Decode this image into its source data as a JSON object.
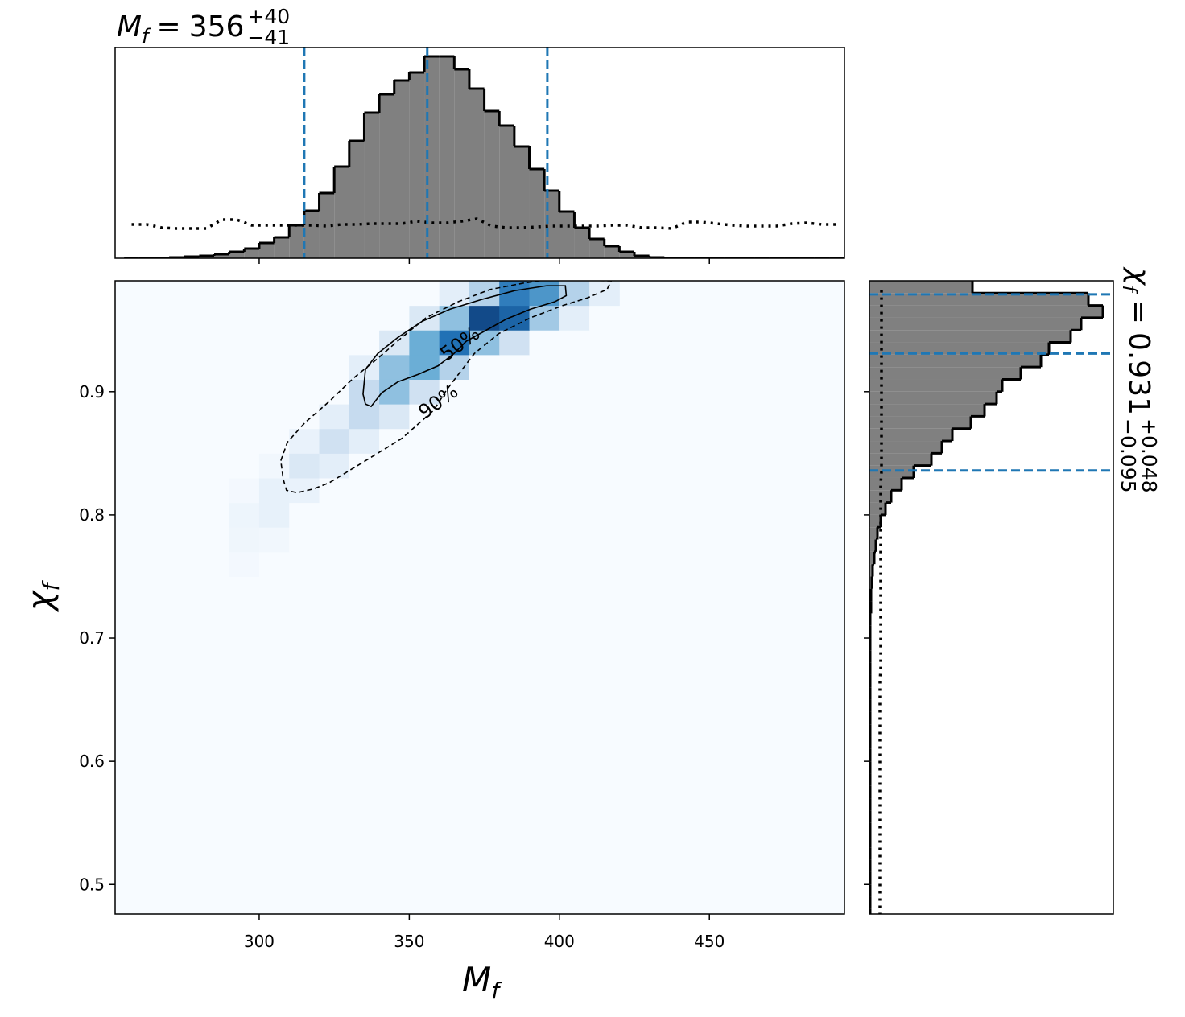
{
  "chart_data": [
    {
      "type": "histogram",
      "title": {
        "symbol": "M",
        "subscript": "f",
        "relation": "=",
        "value": "356",
        "sup": "+40",
        "sub": "−41"
      },
      "bins": [
        255,
        260,
        265,
        270,
        275,
        280,
        285,
        290,
        295,
        300,
        305,
        310,
        315,
        320,
        325,
        330,
        335,
        340,
        345,
        350,
        355,
        360,
        365,
        370,
        375,
        380,
        385,
        390,
        395,
        400,
        405,
        410,
        415,
        420,
        425,
        430,
        435,
        440,
        445,
        450,
        455,
        460,
        465,
        470,
        475,
        480,
        485,
        490,
        495
      ],
      "counts": [
        0,
        0,
        0,
        1,
        2,
        3,
        5,
        8,
        12,
        19,
        26,
        41,
        59,
        81,
        114,
        146,
        181,
        204,
        221,
        231,
        251,
        251,
        235,
        211,
        183,
        165,
        139,
        111,
        84,
        58,
        38,
        24,
        15,
        8,
        3,
        1,
        0,
        0,
        0,
        0,
        0,
        0,
        0,
        0,
        0,
        0,
        0,
        0
      ],
      "prior": [
        42,
        42,
        38,
        37,
        37,
        37,
        48,
        48,
        41,
        41,
        41,
        41,
        41,
        40,
        42,
        42,
        43,
        43,
        43,
        46,
        44,
        44,
        46,
        49,
        40,
        38,
        38,
        39,
        40,
        40,
        40,
        40,
        41,
        41,
        38,
        38,
        37,
        45,
        45,
        43,
        41,
        40,
        40,
        40,
        43,
        44,
        42,
        42
      ],
      "color": "#808080",
      "quantile_color": "#1f77b4",
      "quantiles": [
        315,
        356,
        396
      ],
      "xlim": [
        252,
        495
      ],
      "ylim": [
        0,
        262
      ],
      "xticks": [
        300,
        350,
        400,
        450
      ]
    },
    {
      "type": "heatmap",
      "xlabel": {
        "symbol": "M",
        "subscript": "f"
      },
      "ylabel": {
        "symbol": "χ",
        "subscript": "f"
      },
      "colormap": "Blues",
      "x_bins": [
        290,
        300,
        310,
        320,
        330,
        340,
        350,
        360,
        370,
        380,
        390,
        400,
        410,
        420
      ],
      "y_bins": [
        0.75,
        0.77,
        0.79,
        0.81,
        0.83,
        0.85,
        0.87,
        0.89,
        0.91,
        0.93,
        0.95,
        0.97,
        0.99
      ],
      "density": [
        [
          0.02,
          0,
          0,
          0,
          0,
          0,
          0,
          0,
          0,
          0,
          0,
          0,
          0
        ],
        [
          0.04,
          0.03,
          0,
          0,
          0,
          0,
          0,
          0,
          0,
          0,
          0,
          0,
          0
        ],
        [
          0.05,
          0.08,
          0,
          0,
          0,
          0,
          0,
          0,
          0,
          0,
          0,
          0,
          0
        ],
        [
          0.02,
          0.08,
          0.07,
          0,
          0,
          0,
          0,
          0,
          0,
          0,
          0,
          0,
          0
        ],
        [
          0,
          0.03,
          0.15,
          0.1,
          0,
          0,
          0,
          0,
          0,
          0,
          0,
          0,
          0
        ],
        [
          0,
          0,
          0.07,
          0.2,
          0.1,
          0,
          0,
          0,
          0,
          0,
          0,
          0,
          0
        ],
        [
          0,
          0,
          0,
          0.1,
          0.25,
          0.15,
          0,
          0,
          0,
          0,
          0,
          0,
          0
        ],
        [
          0,
          0,
          0,
          0,
          0.25,
          0.4,
          0.2,
          0,
          0,
          0,
          0,
          0,
          0
        ],
        [
          0,
          0,
          0,
          0,
          0.1,
          0.4,
          0.5,
          0.3,
          0,
          0,
          0,
          0,
          0
        ],
        [
          0,
          0,
          0,
          0,
          0,
          0.15,
          0.5,
          0.75,
          0.4,
          0.2,
          0,
          0,
          0
        ],
        [
          0,
          0,
          0,
          0,
          0,
          0,
          0.15,
          0.4,
          0.9,
          0.8,
          0.35,
          0.1,
          0
        ],
        [
          0,
          0,
          0,
          0,
          0,
          0,
          0,
          0.1,
          0.3,
          0.7,
          0.6,
          0.3,
          0.1
        ]
      ],
      "contours": [
        {
          "label": "50%",
          "style": "solid",
          "points": [
            [
              335.4,
              0.918
            ],
            [
              339.5,
              0.931
            ],
            [
              346.2,
              0.944
            ],
            [
              354.2,
              0.957
            ],
            [
              363.6,
              0.967
            ],
            [
              374.3,
              0.975
            ],
            [
              385.1,
              0.982
            ],
            [
              395.8,
              0.986
            ],
            [
              402.0,
              0.986
            ],
            [
              402.3,
              0.978
            ],
            [
              398.5,
              0.973
            ],
            [
              390.4,
              0.967
            ],
            [
              382.4,
              0.959
            ],
            [
              375.7,
              0.95
            ],
            [
              369.0,
              0.941
            ],
            [
              364.9,
              0.931
            ],
            [
              359.6,
              0.921
            ],
            [
              352.9,
              0.914
            ],
            [
              346.2,
              0.908
            ],
            [
              340.8,
              0.899
            ],
            [
              337.3,
              0.888
            ],
            [
              335.4,
              0.89
            ],
            [
              334.6,
              0.898
            ],
            [
              335.4,
              0.918
            ]
          ]
        },
        {
          "label": "90%",
          "style": "dashed",
          "points": [
            [
              307.2,
              0.844
            ],
            [
              309.4,
              0.859
            ],
            [
              315.3,
              0.875
            ],
            [
              323.3,
              0.892
            ],
            [
              331.4,
              0.911
            ],
            [
              339.5,
              0.927
            ],
            [
              347.5,
              0.944
            ],
            [
              355.6,
              0.96
            ],
            [
              366.3,
              0.973
            ],
            [
              377.0,
              0.983
            ],
            [
              387.8,
              0.988
            ],
            [
              395.8,
              0.991
            ],
            [
              417.3,
              0.99
            ],
            [
              415.9,
              0.983
            ],
            [
              409.2,
              0.976
            ],
            [
              401.2,
              0.97
            ],
            [
              390.4,
              0.96
            ],
            [
              379.7,
              0.947
            ],
            [
              371.7,
              0.931
            ],
            [
              367.6,
              0.918
            ],
            [
              362.3,
              0.901
            ],
            [
              358.2,
              0.885
            ],
            [
              347.5,
              0.862
            ],
            [
              334.1,
              0.842
            ],
            [
              323.3,
              0.826
            ],
            [
              318.0,
              0.821
            ],
            [
              312.6,
              0.818
            ],
            [
              309.1,
              0.82
            ],
            [
              308.0,
              0.829
            ],
            [
              307.2,
              0.844
            ]
          ]
        }
      ],
      "xlim": [
        252,
        495
      ],
      "ylim": [
        0.476,
        0.99
      ],
      "xticks": [
        300,
        350,
        400,
        450
      ],
      "yticks": [
        0.5,
        0.6,
        0.7,
        0.8,
        0.9
      ]
    },
    {
      "type": "histogram",
      "orientation": "horizontal",
      "title": {
        "symbol": "χ",
        "subscript": "f",
        "relation": "=",
        "value": "0.931",
        "sup": "+0.048",
        "sub": "−0.095"
      },
      "bins": [
        0.47,
        0.48,
        0.49,
        0.5,
        0.51,
        0.52,
        0.53,
        0.54,
        0.55,
        0.56,
        0.57,
        0.58,
        0.59,
        0.6,
        0.61,
        0.62,
        0.63,
        0.64,
        0.65,
        0.66,
        0.67,
        0.68,
        0.69,
        0.7,
        0.71,
        0.72,
        0.73,
        0.74,
        0.75,
        0.76,
        0.77,
        0.78,
        0.79,
        0.8,
        0.81,
        0.82,
        0.83,
        0.84,
        0.85,
        0.86,
        0.87,
        0.88,
        0.89,
        0.9,
        0.91,
        0.92,
        0.93,
        0.94,
        0.95,
        0.96,
        0.97,
        0.98,
        0.99
      ],
      "counts": [
        1,
        1,
        1,
        1,
        1,
        1,
        1,
        1,
        1,
        1,
        1,
        1,
        1,
        1,
        1,
        1,
        1,
        1,
        1,
        1,
        1,
        1,
        1,
        1,
        1,
        2,
        2,
        3,
        4,
        6,
        8,
        10,
        14,
        20,
        27,
        40,
        55,
        77,
        90,
        103,
        126,
        143,
        158,
        165,
        188,
        213,
        223,
        250,
        263,
        290,
        272,
        128
      ],
      "prior": [
        13,
        13,
        13,
        13,
        13,
        13,
        13,
        13,
        13,
        13,
        13,
        13,
        13,
        13,
        13,
        13,
        13,
        13,
        13,
        13,
        14,
        14,
        14,
        14,
        14,
        14,
        14,
        14,
        14,
        14,
        14,
        14,
        14,
        14,
        14,
        14,
        15,
        15,
        15,
        15,
        15,
        15,
        15,
        15,
        15,
        15,
        15,
        15,
        15,
        15,
        15,
        15
      ],
      "color": "#808080",
      "quantile_color": "#1f77b4",
      "quantiles": [
        0.836,
        0.931,
        0.979
      ],
      "xlim": [
        0,
        303
      ],
      "ylim": [
        0.476,
        0.99
      ],
      "yticks": [
        0.5,
        0.6,
        0.7,
        0.8,
        0.9
      ]
    }
  ]
}
